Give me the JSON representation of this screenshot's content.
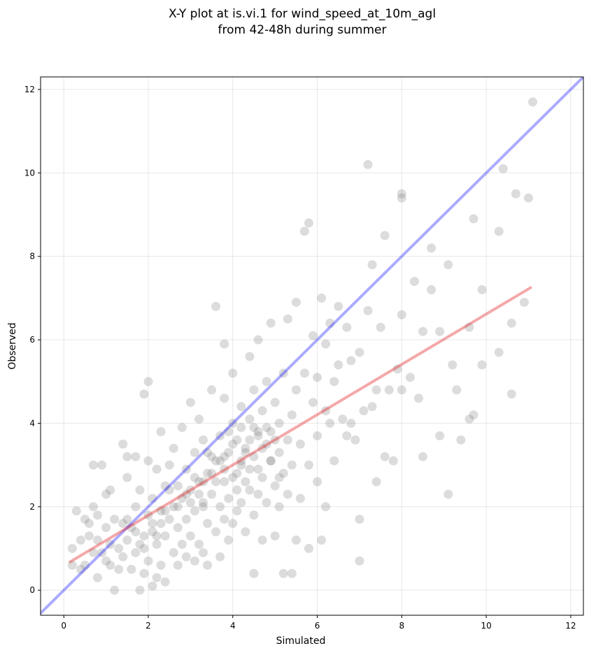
{
  "chart_data": {
    "type": "scatter",
    "title_line1": "X-Y plot at is.vi.1 for wind_speed_at_10m_agl",
    "title_line2": "from 42-48h during summer",
    "xlabel": "Simulated",
    "ylabel": "Observed",
    "xlim": [
      -0.55,
      12.3
    ],
    "ylim": [
      -0.6,
      12.3
    ],
    "xticks": [
      0,
      2,
      4,
      6,
      8,
      10,
      12
    ],
    "yticks": [
      0,
      2,
      4,
      6,
      8,
      10,
      12
    ],
    "grid": true,
    "colors": {
      "points": "#808080",
      "one_to_one": "#0000ff",
      "fit": "#e31a1c"
    },
    "one_to_one_line": [
      [
        -0.55,
        -0.55
      ],
      [
        12.3,
        12.3
      ]
    ],
    "fit_line": [
      [
        0.15,
        0.68
      ],
      [
        11.05,
        7.25
      ]
    ],
    "points": [
      [
        0.2,
        1.0
      ],
      [
        0.2,
        0.6
      ],
      [
        0.3,
        1.9
      ],
      [
        0.4,
        0.5
      ],
      [
        0.4,
        1.2
      ],
      [
        0.5,
        1.7
      ],
      [
        0.5,
        0.6
      ],
      [
        0.6,
        1.6
      ],
      [
        0.6,
        1.3
      ],
      [
        0.7,
        2.0
      ],
      [
        0.7,
        0.9
      ],
      [
        0.7,
        3.0
      ],
      [
        0.8,
        1.8
      ],
      [
        0.8,
        1.2
      ],
      [
        0.8,
        0.3
      ],
      [
        0.9,
        0.9
      ],
      [
        0.9,
        3.0
      ],
      [
        1.0,
        1.5
      ],
      [
        1.0,
        0.7
      ],
      [
        1.0,
        2.3
      ],
      [
        1.1,
        1.1
      ],
      [
        1.1,
        0.6
      ],
      [
        1.1,
        2.4
      ],
      [
        1.2,
        0.0
      ],
      [
        1.2,
        1.7
      ],
      [
        1.3,
        1.0
      ],
      [
        1.3,
        0.5
      ],
      [
        1.4,
        3.5
      ],
      [
        1.4,
        1.6
      ],
      [
        1.4,
        0.8
      ],
      [
        1.5,
        1.2
      ],
      [
        1.5,
        2.7
      ],
      [
        1.5,
        3.2
      ],
      [
        1.6,
        0.5
      ],
      [
        1.6,
        1.5
      ],
      [
        1.7,
        3.2
      ],
      [
        1.7,
        0.9
      ],
      [
        1.7,
        2.0
      ],
      [
        1.8,
        1.1
      ],
      [
        1.8,
        0.0
      ],
      [
        1.8,
        2.4
      ],
      [
        1.9,
        0.4
      ],
      [
        1.9,
        4.7
      ],
      [
        1.9,
        1.3
      ],
      [
        2.0,
        0.7
      ],
      [
        2.0,
        1.8
      ],
      [
        2.0,
        3.1
      ],
      [
        2.0,
        5.0
      ],
      [
        2.1,
        0.1
      ],
      [
        2.1,
        1.6
      ],
      [
        2.1,
        2.2
      ],
      [
        2.2,
        0.3
      ],
      [
        2.2,
        1.1
      ],
      [
        2.2,
        2.9
      ],
      [
        2.3,
        1.9
      ],
      [
        2.3,
        0.6
      ],
      [
        2.3,
        3.8
      ],
      [
        2.4,
        1.3
      ],
      [
        2.4,
        2.5
      ],
      [
        2.4,
        0.2
      ],
      [
        2.5,
        1.7
      ],
      [
        2.5,
        3.0
      ],
      [
        2.6,
        0.9
      ],
      [
        2.6,
        2.0
      ],
      [
        2.6,
        3.4
      ],
      [
        2.7,
        1.5
      ],
      [
        2.7,
        0.6
      ],
      [
        2.7,
        2.5
      ],
      [
        2.8,
        1.1
      ],
      [
        2.8,
        3.9
      ],
      [
        2.8,
        2.2
      ],
      [
        2.9,
        1.7
      ],
      [
        2.9,
        0.8
      ],
      [
        2.9,
        2.9
      ],
      [
        3.0,
        4.5
      ],
      [
        3.0,
        2.4
      ],
      [
        3.0,
        1.3
      ],
      [
        3.1,
        0.7
      ],
      [
        3.1,
        1.9
      ],
      [
        3.1,
        3.3
      ],
      [
        3.2,
        2.6
      ],
      [
        3.2,
        4.1
      ],
      [
        3.2,
        1.1
      ],
      [
        3.3,
        2.1
      ],
      [
        3.3,
        0.9
      ],
      [
        3.3,
        3.6
      ],
      [
        3.4,
        1.6
      ],
      [
        3.4,
        2.8
      ],
      [
        3.4,
        0.6
      ],
      [
        3.5,
        2.3
      ],
      [
        3.5,
        3.2
      ],
      [
        3.5,
        4.8
      ],
      [
        3.6,
        1.4
      ],
      [
        3.6,
        2.6
      ],
      [
        3.6,
        6.8
      ],
      [
        3.7,
        2.0
      ],
      [
        3.7,
        3.7
      ],
      [
        3.7,
        0.8
      ],
      [
        3.8,
        2.9
      ],
      [
        3.8,
        1.7
      ],
      [
        3.8,
        4.6
      ],
      [
        3.8,
        5.9
      ],
      [
        3.9,
        2.2
      ],
      [
        3.9,
        3.3
      ],
      [
        3.9,
        1.2
      ],
      [
        4.0,
        2.7
      ],
      [
        4.0,
        4.0
      ],
      [
        4.0,
        1.6
      ],
      [
        4.0,
        5.2
      ],
      [
        4.1,
        2.4
      ],
      [
        4.1,
        3.6
      ],
      [
        4.1,
        1.9
      ],
      [
        4.2,
        3.0
      ],
      [
        4.2,
        4.4
      ],
      [
        4.2,
        2.1
      ],
      [
        4.3,
        3.4
      ],
      [
        4.3,
        1.4
      ],
      [
        4.3,
        2.6
      ],
      [
        4.4,
        4.1
      ],
      [
        4.4,
        2.9
      ],
      [
        4.4,
        5.6
      ],
      [
        4.5,
        3.2
      ],
      [
        4.5,
        1.8
      ],
      [
        4.5,
        0.4
      ],
      [
        4.5,
        4.8
      ],
      [
        4.6,
        2.3
      ],
      [
        4.6,
        3.7
      ],
      [
        4.6,
        6.0
      ],
      [
        4.7,
        2.7
      ],
      [
        4.7,
        4.3
      ],
      [
        4.7,
        1.2
      ],
      [
        4.8,
        3.5
      ],
      [
        4.8,
        2.1
      ],
      [
        4.8,
        5.0
      ],
      [
        4.9,
        3.1
      ],
      [
        4.9,
        3.8
      ],
      [
        4.9,
        6.4
      ],
      [
        5.0,
        2.5
      ],
      [
        5.0,
        4.5
      ],
      [
        5.0,
        1.3
      ],
      [
        5.1,
        3.3
      ],
      [
        5.1,
        2.0
      ],
      [
        5.1,
        4.0
      ],
      [
        5.2,
        2.8
      ],
      [
        5.2,
        5.2
      ],
      [
        5.2,
        0.4
      ],
      [
        5.3,
        3.6
      ],
      [
        5.3,
        2.3
      ],
      [
        5.3,
        6.5
      ],
      [
        5.4,
        4.2
      ],
      [
        5.4,
        3.0
      ],
      [
        5.4,
        0.4
      ],
      [
        5.5,
        4.8
      ],
      [
        5.5,
        1.2
      ],
      [
        5.5,
        6.9
      ],
      [
        5.6,
        3.5
      ],
      [
        5.6,
        2.2
      ],
      [
        5.7,
        8.6
      ],
      [
        5.7,
        5.2
      ],
      [
        5.8,
        8.8
      ],
      [
        5.8,
        3.0
      ],
      [
        5.8,
        1.0
      ],
      [
        5.9,
        4.5
      ],
      [
        5.9,
        6.1
      ],
      [
        6.0,
        3.7
      ],
      [
        6.0,
        5.1
      ],
      [
        6.0,
        2.6
      ],
      [
        6.1,
        7.0
      ],
      [
        6.1,
        1.2
      ],
      [
        6.2,
        4.3
      ],
      [
        6.2,
        5.9
      ],
      [
        6.2,
        2.0
      ],
      [
        6.3,
        6.4
      ],
      [
        6.3,
        4.0
      ],
      [
        6.4,
        5.0
      ],
      [
        6.4,
        3.1
      ],
      [
        6.5,
        6.8
      ],
      [
        6.5,
        5.4
      ],
      [
        6.6,
        4.1
      ],
      [
        6.7,
        6.3
      ],
      [
        6.7,
        3.7
      ],
      [
        6.8,
        5.5
      ],
      [
        6.8,
        4.0
      ],
      [
        6.9,
        3.6
      ],
      [
        7.0,
        5.7
      ],
      [
        7.0,
        1.7
      ],
      [
        7.0,
        0.7
      ],
      [
        7.1,
        4.3
      ],
      [
        7.2,
        10.2
      ],
      [
        7.2,
        6.7
      ],
      [
        7.3,
        4.4
      ],
      [
        7.3,
        7.8
      ],
      [
        7.4,
        2.6
      ],
      [
        7.4,
        4.8
      ],
      [
        7.5,
        6.3
      ],
      [
        7.6,
        8.5
      ],
      [
        7.6,
        3.2
      ],
      [
        7.7,
        4.8
      ],
      [
        7.8,
        3.1
      ],
      [
        7.9,
        5.3
      ],
      [
        8.0,
        9.5
      ],
      [
        8.0,
        9.4
      ],
      [
        8.0,
        6.6
      ],
      [
        8.0,
        4.8
      ],
      [
        8.2,
        5.1
      ],
      [
        8.3,
        7.4
      ],
      [
        8.4,
        4.6
      ],
      [
        8.5,
        3.2
      ],
      [
        8.5,
        6.2
      ],
      [
        8.7,
        8.2
      ],
      [
        8.7,
        7.2
      ],
      [
        8.9,
        3.7
      ],
      [
        8.9,
        6.2
      ],
      [
        9.1,
        7.8
      ],
      [
        9.1,
        2.3
      ],
      [
        9.2,
        5.4
      ],
      [
        9.3,
        4.8
      ],
      [
        9.4,
        3.6
      ],
      [
        9.6,
        6.3
      ],
      [
        9.6,
        4.1
      ],
      [
        9.7,
        8.9
      ],
      [
        9.7,
        4.2
      ],
      [
        9.9,
        7.2
      ],
      [
        9.9,
        5.4
      ],
      [
        10.3,
        8.6
      ],
      [
        10.3,
        5.7
      ],
      [
        10.4,
        10.1
      ],
      [
        10.6,
        4.7
      ],
      [
        10.6,
        6.4
      ],
      [
        10.7,
        9.5
      ],
      [
        10.9,
        6.9
      ],
      [
        11.0,
        9.4
      ],
      [
        11.1,
        11.7
      ],
      [
        3.2,
        2.3
      ],
      [
        3.4,
        3.3
      ],
      [
        3.7,
        3.1
      ],
      [
        3.8,
        2.6
      ],
      [
        4.1,
        2.8
      ],
      [
        4.2,
        3.9
      ],
      [
        4.3,
        3.3
      ],
      [
        4.4,
        2.4
      ],
      [
        4.5,
        3.9
      ],
      [
        4.6,
        2.9
      ],
      [
        4.7,
        3.4
      ],
      [
        4.8,
        3.9
      ],
      [
        4.9,
        3.1
      ],
      [
        5.0,
        3.6
      ],
      [
        5.1,
        2.7
      ],
      [
        3.9,
        3.8
      ],
      [
        3.3,
        2.0
      ],
      [
        2.9,
        2.3
      ],
      [
        2.5,
        2.4
      ],
      [
        2.3,
        1.6
      ],
      [
        2.1,
        1.4
      ],
      [
        1.9,
        1.0
      ],
      [
        1.7,
        1.4
      ],
      [
        1.5,
        1.7
      ],
      [
        3.6,
        3.1
      ],
      [
        3.8,
        3.2
      ],
      [
        4.0,
        3.5
      ],
      [
        4.2,
        3.1
      ],
      [
        4.4,
        3.6
      ],
      [
        4.6,
        3.8
      ],
      [
        2.7,
        2.0
      ],
      [
        3.0,
        2.1
      ],
      [
        3.1,
        2.7
      ],
      [
        3.3,
        2.6
      ],
      [
        3.5,
        2.8
      ],
      [
        2.4,
        1.9
      ],
      [
        2.2,
        1.3
      ]
    ]
  }
}
